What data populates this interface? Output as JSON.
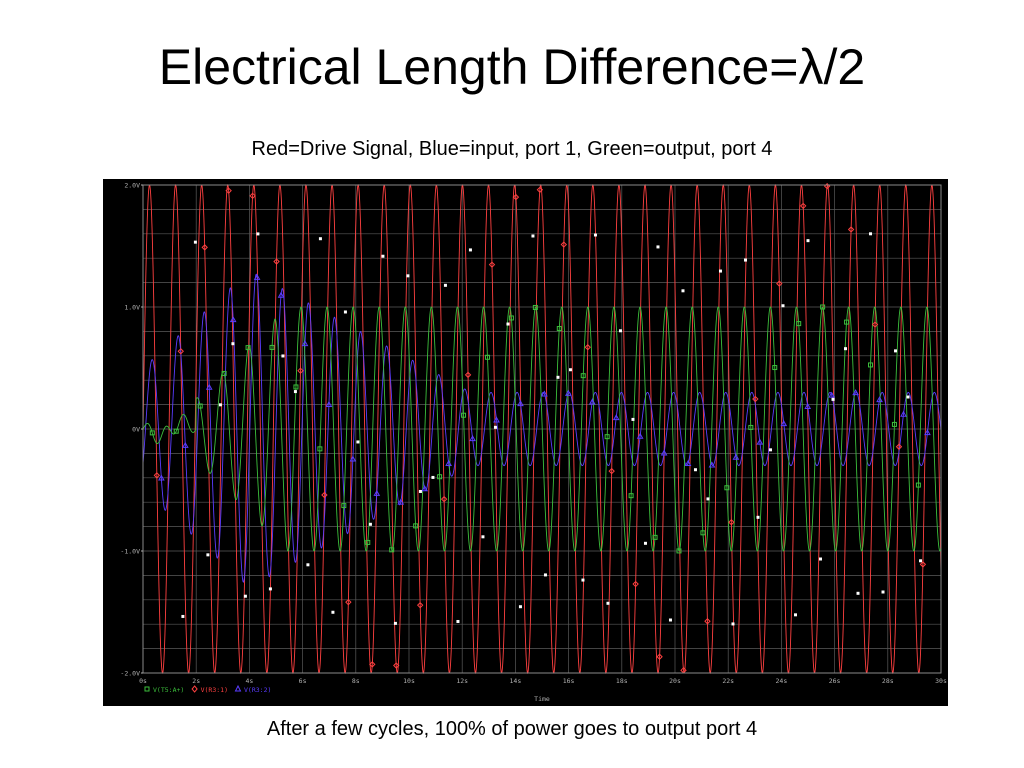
{
  "slide": {
    "title": "Electrical Length Difference=λ/2",
    "subtitle": "Red=Drive Signal, Blue=input, port 1, Green=output, port 4",
    "caption": "After a few cycles, 100% of power goes to output port 4"
  },
  "chart_data": {
    "type": "line",
    "xlabel": "Time",
    "x_ticks": [
      "0s",
      "2s",
      "4s",
      "6s",
      "8s",
      "10s",
      "12s",
      "14s",
      "16s",
      "18s",
      "20s",
      "22s",
      "24s",
      "26s",
      "28s",
      "30s"
    ],
    "y_ticks": [
      "2.0V",
      "1.0V",
      "0V",
      "-1.0V",
      "-2.0V"
    ],
    "xlim": [
      0,
      30
    ],
    "ylim": [
      -2.0,
      2.0
    ],
    "grid": true,
    "legend_placement": "bottom-left",
    "series": [
      {
        "name": "V(T5:A+)",
        "color": "#3cbf3c",
        "marker": "square",
        "amplitude": 1.0,
        "cycles_per_s": 1.0
      },
      {
        "name": "V(R3:1)",
        "color": "#ff4040",
        "marker": "diamond",
        "amplitude": 2.0,
        "cycles_per_s": 1.0
      },
      {
        "name": "V(R3:2)",
        "color": "#5a3cff",
        "marker": "triangle",
        "amplitude": 1.0,
        "cycles_per_s": 1.0
      }
    ]
  }
}
